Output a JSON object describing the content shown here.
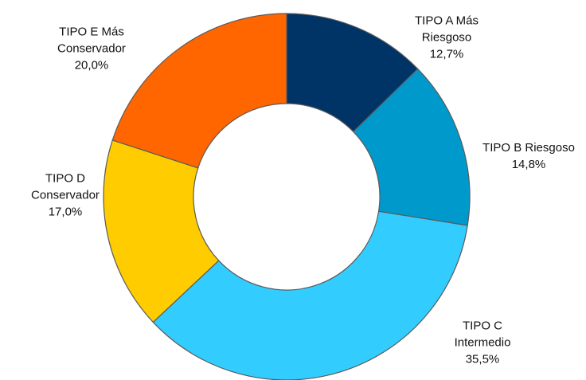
{
  "chart_data": {
    "type": "donut",
    "categories": [
      "TIPO A Más Riesgoso",
      "TIPO B Riesgoso",
      "TIPO C Intermedio",
      "TIPO D Conservador",
      "TIPO E Más Conservador"
    ],
    "values": [
      12.7,
      14.8,
      35.5,
      17.0,
      20.0
    ],
    "value_labels": [
      "12,7%",
      "14,8%",
      "35,5%",
      "17,0%",
      "20,0%"
    ],
    "colors": [
      "#003366",
      "#0099cc",
      "#33ccff",
      "#ffcc00",
      "#ff6600"
    ]
  }
}
